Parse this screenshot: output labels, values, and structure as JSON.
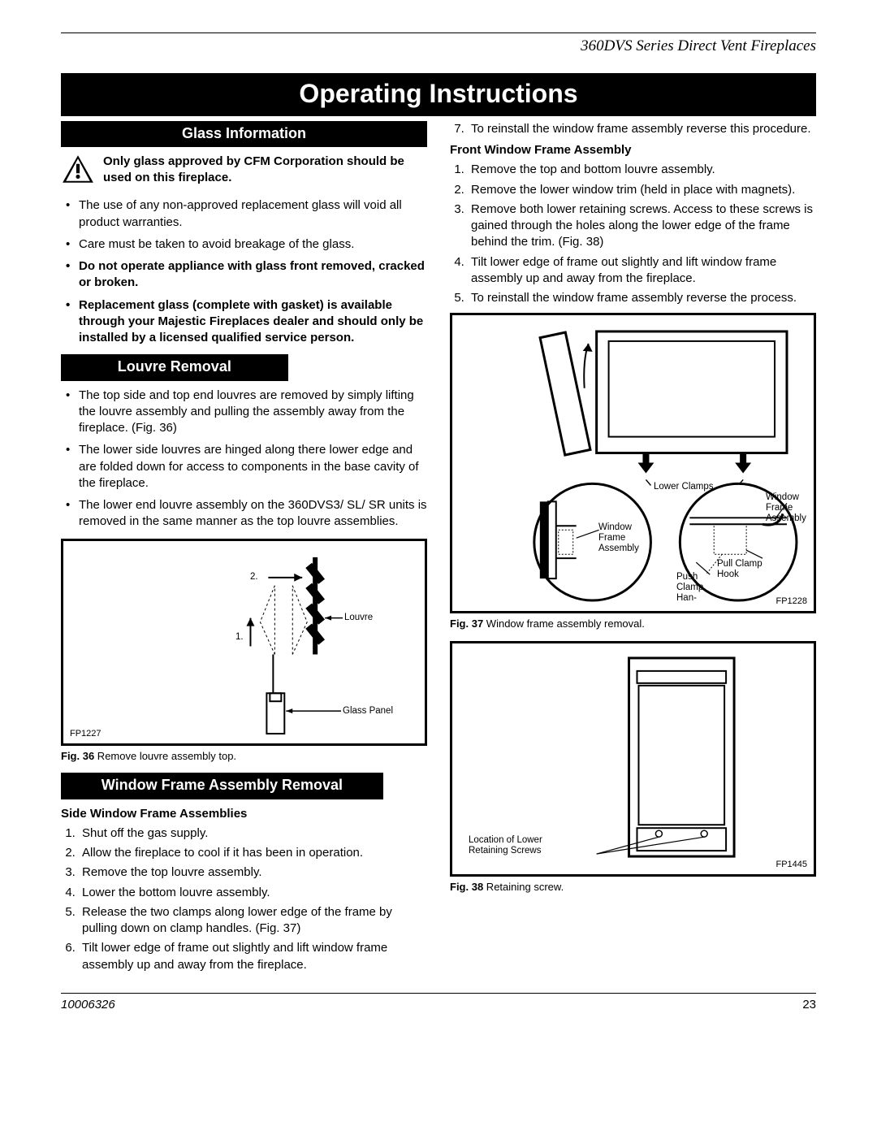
{
  "header": {
    "product_line": "360DVS Series Direct Vent Fireplaces"
  },
  "main_title": "Operating Instructions",
  "left": {
    "sec1_title": "Glass Information",
    "warn_text": "Only glass approved by CFM Corporation should be used on this fireplace.",
    "glass_bullets": [
      {
        "t": "The use of any non-approved replacement glass will void all product warranties.",
        "b": false
      },
      {
        "t": "Care must be taken to avoid breakage of the glass.",
        "b": false
      },
      {
        "t": "Do not operate appliance with glass front removed, cracked or broken.",
        "b": true
      },
      {
        "t": "Replacement glass (complete with gasket) is available through your Majestic Fireplaces dealer and should only be installed by a licensed qualified service person.",
        "b": true
      }
    ],
    "sec2_title": "Louvre Removal",
    "louvre_bullets": [
      "The top side and top end louvres are removed by simply lifting the louvre assembly and pulling the assembly away from the fireplace. (Fig. 36)",
      "The lower side louvres are hinged along there lower edge and are folded down for access to components in the base cavity of the fireplace.",
      "The lower end louvre assembly on the 360DVS3/ SL/ SR units is removed in the same manner as the top louvre assemblies."
    ],
    "fig36": {
      "id": "FP1227",
      "num1": "1.",
      "num2": "2.",
      "label_louvre": "Louvre",
      "label_glass": "Glass Panel",
      "caption_b": "Fig. 36",
      "caption_t": "  Remove louvre assembly top."
    },
    "sec3_title": "Window Frame Assembly Removal",
    "side_head": "Side Window Frame Assemblies",
    "side_steps": [
      "Shut off the gas supply.",
      "Allow the fireplace to cool if it has been in operation.",
      "Remove the top louvre assembly.",
      "Lower the bottom louvre assembly.",
      "Release the two clamps along lower edge of the frame by pulling down on clamp handles. (Fig. 37)",
      "Tilt lower edge of frame out slightly and lift window frame assembly up and away from the fireplace."
    ]
  },
  "right": {
    "cont_step7": "To reinstall the window frame assembly reverse this   procedure.",
    "front_head": "Front Window Frame Assembly",
    "front_steps": [
      "Remove the top and bottom louvre assembly.",
      "Remove the lower window trim (held in place with magnets).",
      "Remove both lower retaining screws. Access to these screws is gained through the holes along the lower edge of the frame behind the trim. (Fig. 38)",
      "Tilt lower edge of frame out slightly and lift window frame assembly up and away from the fireplace.",
      "To reinstall the window frame assembly reverse the process."
    ],
    "fig37": {
      "id": "FP1228",
      "label_lower_clamps": "Lower Clamps",
      "label_wfa_left": "Window\nFrame\nAssembly",
      "label_wfa_right": "Window\nFrame\nAssembly",
      "label_push": "Push\nClamp\nHan-",
      "label_pull": "Pull Clamp\nHook",
      "caption_b": "Fig. 37",
      "caption_t": "  Window frame assembly removal."
    },
    "fig38": {
      "id": "FP1445",
      "label_loc": "Location of Lower\nRetaining Screws",
      "caption_b": "Fig. 38",
      "caption_t": "  Retaining screw."
    }
  },
  "footer": {
    "doc_no": "10006326",
    "page": "23"
  }
}
